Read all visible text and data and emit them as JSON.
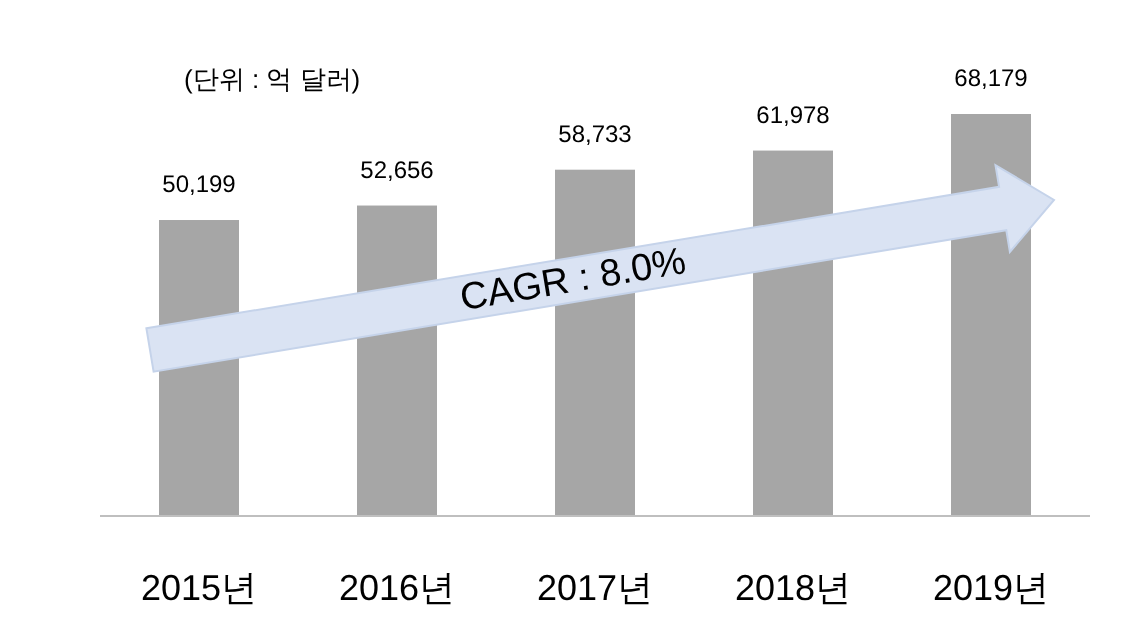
{
  "chart_data": {
    "type": "bar",
    "categories": [
      "2015년",
      "2016년",
      "2017년",
      "2018년",
      "2019년"
    ],
    "values": [
      50199,
      52656,
      58733,
      61978,
      68179
    ],
    "color": "#a6a6a6",
    "value_labels": [
      "50,199",
      "52,656",
      "58,733",
      "61,978",
      "68,179"
    ],
    "annotations": [
      "(단위 : 억 달러)",
      "CAGR : 8.0%"
    ]
  }
}
